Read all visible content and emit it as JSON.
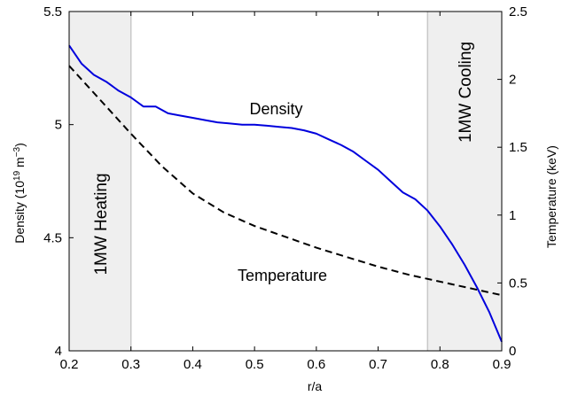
{
  "chart_data": {
    "type": "line",
    "title": "",
    "xlabel": "r/a",
    "ylabel_left": "Density (10",
    "ylabel_left_exp1": "19",
    "ylabel_left_mid": " m",
    "ylabel_left_exp2": "−3",
    "ylabel_left_end": ")",
    "ylabel_right": "Temperature (keV)",
    "xlim": [
      0.2,
      0.9
    ],
    "ylim_left": [
      4,
      5.5
    ],
    "ylim_right": [
      0,
      2.5
    ],
    "x_ticks": [
      0.2,
      0.3,
      0.4,
      0.5,
      0.6,
      0.7,
      0.8,
      0.9
    ],
    "x_tick_labels": [
      "0.2",
      "0.3",
      "0.4",
      "0.5",
      "0.6",
      "0.7",
      "0.8",
      "0.9"
    ],
    "y_left_ticks": [
      4,
      4.5,
      5,
      5.5
    ],
    "y_left_tick_labels": [
      "4",
      "4.5",
      "5",
      "5.5"
    ],
    "y_right_ticks": [
      0,
      0.5,
      1,
      1.5,
      2,
      2.5
    ],
    "y_right_tick_labels": [
      "0",
      "0.5",
      "1",
      "1.5",
      "2",
      "2.5"
    ],
    "regions": [
      {
        "label": "1MW Heating",
        "x": [
          0.2,
          0.3
        ]
      },
      {
        "label": "1MW  Cooling",
        "x": [
          0.78,
          0.9
        ]
      }
    ],
    "annotations": [
      {
        "text": "Density",
        "x": 0.535,
        "y": 5.045,
        "axis": "left"
      },
      {
        "text": "Temperature",
        "x": 0.545,
        "y": 4.31,
        "axis": "left"
      }
    ],
    "series": [
      {
        "name": "Density",
        "axis": "left",
        "color": "#0000dd",
        "style": "solid",
        "x": [
          0.2,
          0.22,
          0.24,
          0.26,
          0.28,
          0.3,
          0.32,
          0.34,
          0.36,
          0.38,
          0.4,
          0.42,
          0.44,
          0.46,
          0.48,
          0.5,
          0.52,
          0.54,
          0.56,
          0.58,
          0.6,
          0.62,
          0.64,
          0.66,
          0.68,
          0.7,
          0.72,
          0.74,
          0.76,
          0.78,
          0.8,
          0.82,
          0.84,
          0.86,
          0.88,
          0.9
        ],
        "y": [
          5.35,
          5.27,
          5.22,
          5.19,
          5.15,
          5.12,
          5.08,
          5.08,
          5.05,
          5.04,
          5.03,
          5.02,
          5.01,
          5.005,
          5.0,
          5.0,
          4.995,
          4.99,
          4.985,
          4.975,
          4.96,
          4.935,
          4.91,
          4.88,
          4.84,
          4.8,
          4.75,
          4.7,
          4.67,
          4.62,
          4.55,
          4.47,
          4.38,
          4.28,
          4.17,
          4.04
        ]
      },
      {
        "name": "Temperature",
        "axis": "right",
        "color": "#000000",
        "style": "dashed",
        "x": [
          0.2,
          0.25,
          0.3,
          0.35,
          0.4,
          0.45,
          0.5,
          0.55,
          0.6,
          0.65,
          0.7,
          0.75,
          0.8,
          0.85,
          0.9
        ],
        "y": [
          2.1,
          1.85,
          1.6,
          1.36,
          1.16,
          1.02,
          0.92,
          0.84,
          0.76,
          0.69,
          0.62,
          0.56,
          0.51,
          0.46,
          0.41
        ]
      }
    ]
  }
}
